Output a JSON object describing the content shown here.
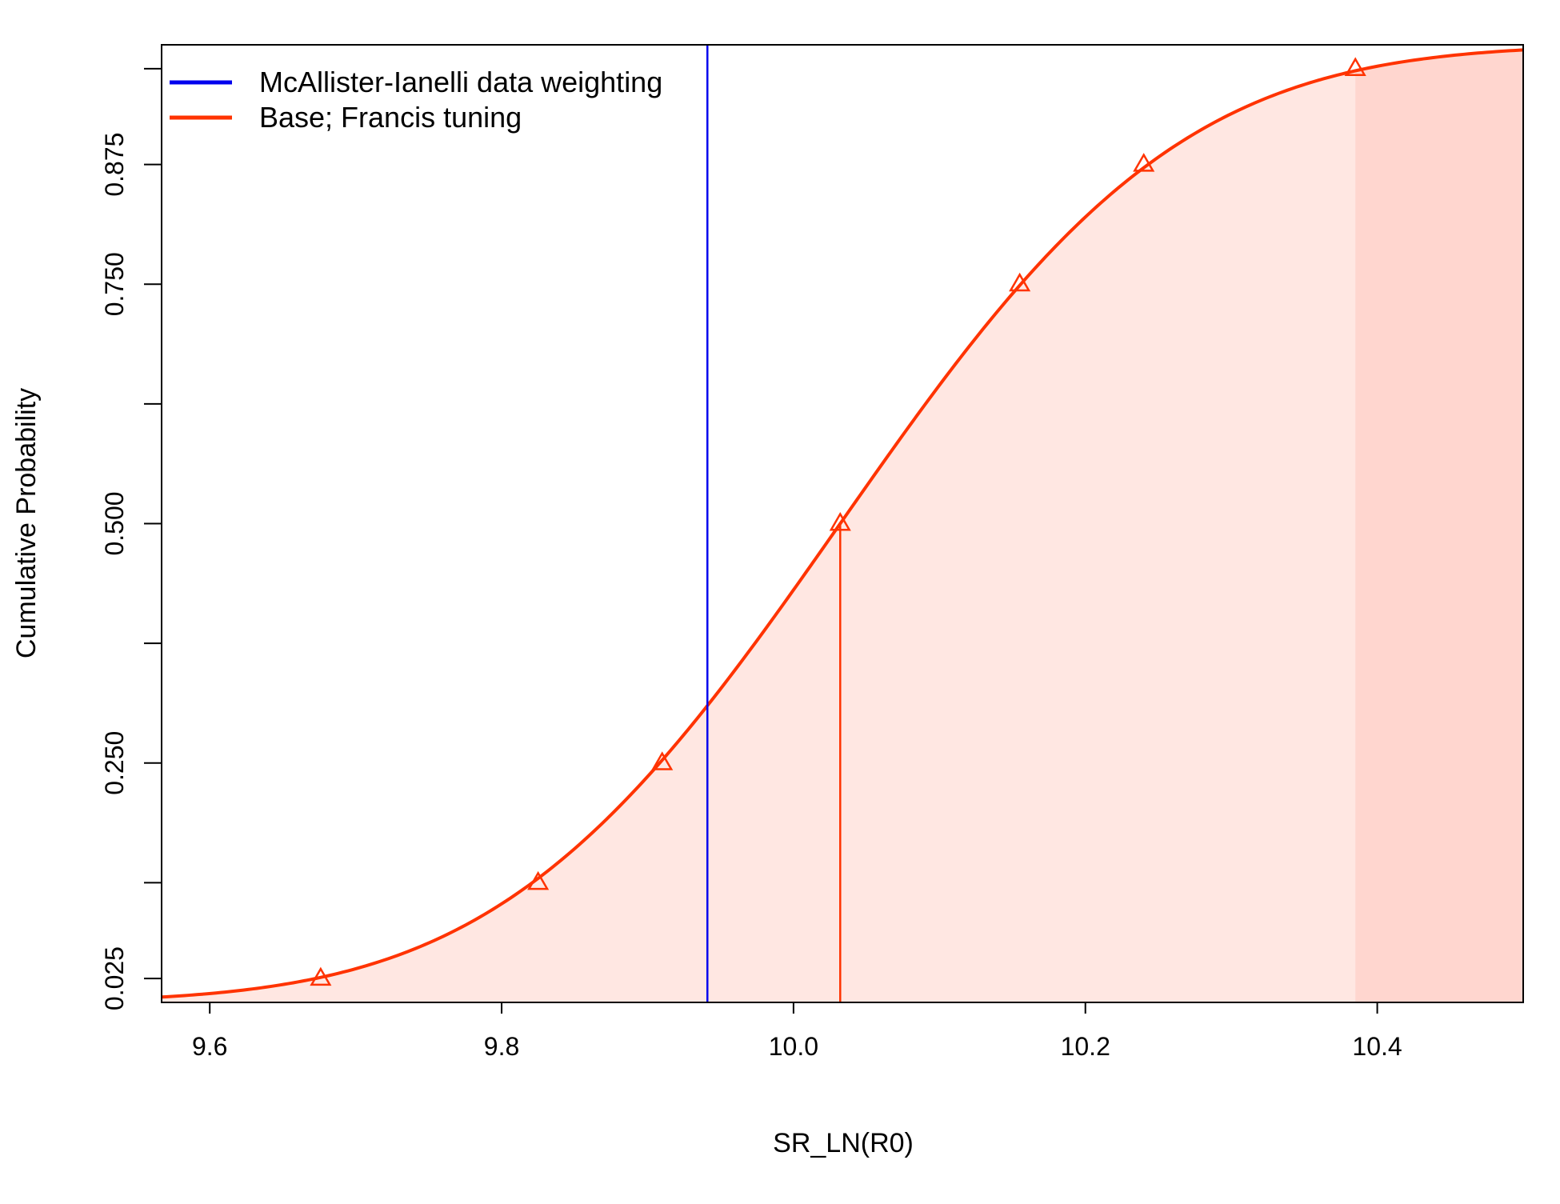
{
  "chart_data": {
    "type": "line",
    "xlabel": "SR_LN(R0)",
    "ylabel": "Cumulative Probability",
    "xlim": [
      9.567,
      10.5
    ],
    "ylim": [
      0.0,
      1.0
    ],
    "x_ticks": [
      9.6,
      9.8,
      10.0,
      10.2,
      10.4
    ],
    "x_tick_labels": [
      "9.6",
      "9.8",
      "10.0",
      "10.2",
      "10.4"
    ],
    "y_ticks": [
      0.025,
      0.125,
      0.25,
      0.375,
      0.5,
      0.625,
      0.75,
      0.875,
      0.975
    ],
    "y_tick_labels": [
      "0.025",
      "",
      "0.250",
      "",
      "0.500",
      "",
      "0.750",
      "0.875",
      ""
    ],
    "grid": false,
    "legend_position": "top-left",
    "series": [
      {
        "name": "McAllister-Ianelli data weighting",
        "color": "#0000ee",
        "type": "vline",
        "x": 9.941
      },
      {
        "name": "Base; Francis tuning",
        "color": "#ff3300",
        "type": "cdf",
        "mean": 10.032,
        "sd": 0.1834,
        "markers": {
          "shape": "triangle-open",
          "x": [
            9.676,
            9.825,
            9.91,
            10.155,
            10.24,
            10.385
          ],
          "y": [
            0.025,
            0.125,
            0.25,
            0.75,
            0.875,
            0.975
          ]
        },
        "median": {
          "x": 10.032,
          "y": 0.5
        },
        "shaded_band_interval": [
          9.567,
          10.5
        ],
        "shaded_tail_from": 10.385,
        "band_fill": "#ffe7e2",
        "tail_fill": "#ffd6cf"
      }
    ]
  }
}
